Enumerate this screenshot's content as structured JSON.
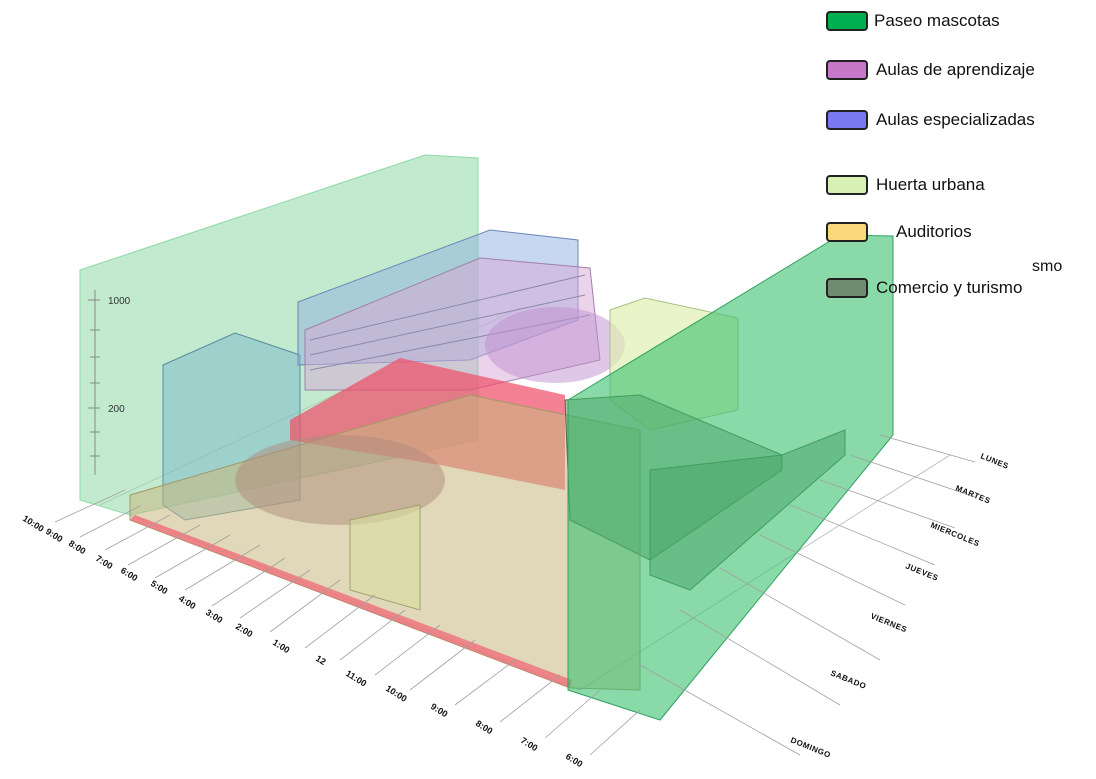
{
  "legend": [
    {
      "label": "Paseo mascotas",
      "color": "#00b050"
    },
    {
      "label": "Aulas de aprendizaje",
      "color": "#c878c8"
    },
    {
      "label": "Aulas especializadas",
      "color": "#7878f0"
    },
    {
      "label": "Huerta urbana",
      "color": "#d8f0b4"
    },
    {
      "label": "Auditorios",
      "color": "#f8d878"
    },
    {
      "label": "Comercio y turismo",
      "color": "#708c70"
    }
  ],
  "stray_text": "smo",
  "y_axis": {
    "ticks": [
      "1000",
      "200"
    ]
  },
  "time_axis": {
    "labels": [
      "10:00",
      "9:00",
      "8:00",
      "7:00",
      "6:00",
      "5:00",
      "4:00",
      "3:00",
      "2:00",
      "1:00",
      "12",
      "11:00",
      "10:00",
      "9:00",
      "8:00",
      "7:00",
      "6:00"
    ]
  },
  "day_axis": {
    "labels": [
      "LUNES",
      "MARTES",
      "MIERCOLES",
      "JUEVES",
      "VIERNES",
      "SABADO",
      "DOMINGO"
    ]
  }
}
